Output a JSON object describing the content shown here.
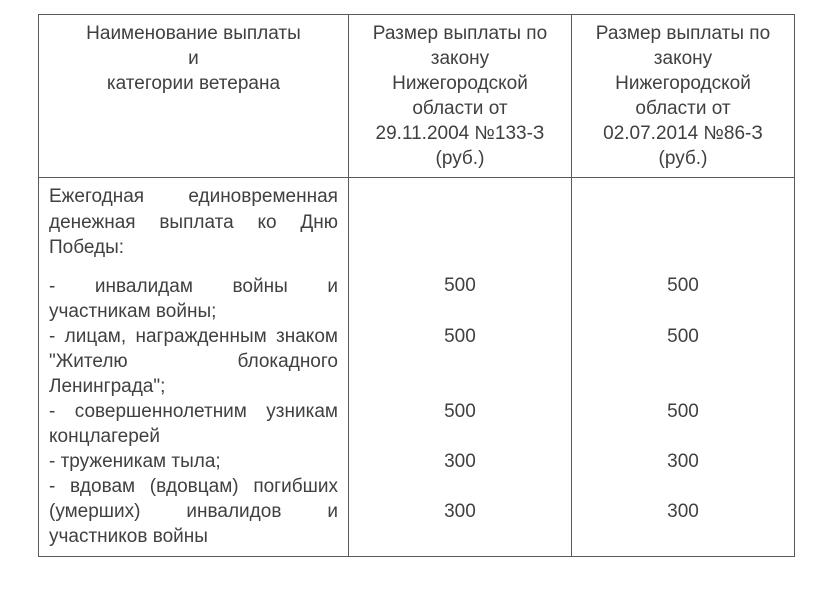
{
  "table": {
    "header": {
      "col1_line1": "Наименование выплаты",
      "col1_line2": "и",
      "col1_line3": "категории ветерана",
      "col2_line1": "Размер выплаты по",
      "col2_line2": "закону",
      "col2_line3": "Нижегородской",
      "col2_line4": "области от",
      "col2_line5": "29.11.2004 №133-З",
      "col2_line6": "(руб.)",
      "col3_line1": "Размер выплаты по",
      "col3_line2": "закону",
      "col3_line3": "Нижегородской",
      "col3_line4": "области от",
      "col3_line5": "02.07.2014 №86-З",
      "col3_line6": "(руб.)"
    },
    "body": {
      "intro_line1": "Ежегодная единовременная",
      "intro_line2": "денежная выплата ко Дню",
      "intro_line3": "Победы:",
      "item1_line1": "- инвалидам войны и",
      "item1_line2": "участникам войны;",
      "item2_line1": "- лицам, награжденным знаком",
      "item2_line2": "\"Жителю блокадного",
      "item2_line3": "Ленинграда\";",
      "item3_line1": " - совершеннолетним узникам",
      "item3_line2": "концлагерей",
      "item4_line1": "- труженикам тыла;",
      "item5_line1": "- вдовам (вдовцам) погибших",
      "item5_line2": "(умерших) инвалидов и",
      "item5_line3": "участников войны",
      "values_col2": {
        "v1": "500",
        "v2": "500",
        "v3": "500",
        "v4": "300",
        "v5": "300"
      },
      "values_col3": {
        "v1": "500",
        "v2": "500",
        "v3": "500",
        "v4": "300",
        "v5": "300"
      }
    }
  },
  "style": {
    "font_family": "Tahoma",
    "font_size_pt": 14,
    "text_color": "#404040",
    "border_color": "#5a5a5a",
    "background_color": "#ffffff"
  }
}
